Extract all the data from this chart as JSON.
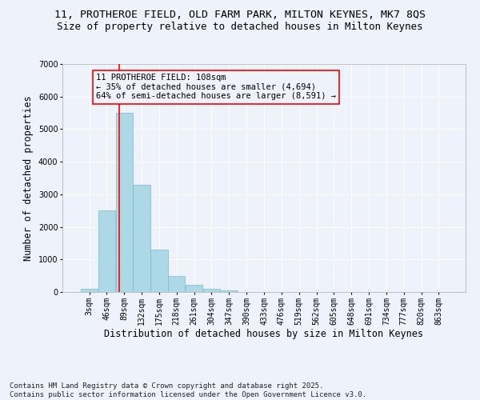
{
  "title_line1": "11, PROTHEROE FIELD, OLD FARM PARK, MILTON KEYNES, MK7 8QS",
  "title_line2": "Size of property relative to detached houses in Milton Keynes",
  "xlabel": "Distribution of detached houses by size in Milton Keynes",
  "ylabel": "Number of detached properties",
  "categories": [
    "3sqm",
    "46sqm",
    "89sqm",
    "132sqm",
    "175sqm",
    "218sqm",
    "261sqm",
    "304sqm",
    "347sqm",
    "390sqm",
    "433sqm",
    "476sqm",
    "519sqm",
    "562sqm",
    "605sqm",
    "648sqm",
    "691sqm",
    "734sqm",
    "777sqm",
    "820sqm",
    "863sqm"
  ],
  "values": [
    100,
    2500,
    5500,
    3300,
    1300,
    480,
    220,
    100,
    60,
    0,
    0,
    0,
    0,
    0,
    0,
    0,
    0,
    0,
    0,
    0,
    0
  ],
  "bar_color": "#add8e6",
  "bar_edge_color": "#7ab8d4",
  "bar_width": 0.97,
  "vline_color": "red",
  "vline_x": 1.7,
  "ylim": [
    0,
    7000
  ],
  "yticks": [
    0,
    1000,
    2000,
    3000,
    4000,
    5000,
    6000,
    7000
  ],
  "annotation_text": "11 PROTHEROE FIELD: 108sqm\n← 35% of detached houses are smaller (4,694)\n64% of semi-detached houses are larger (8,591) →",
  "box_color": "red",
  "background_color": "#eef2fb",
  "grid_color": "#ffffff",
  "footer_line1": "Contains HM Land Registry data © Crown copyright and database right 2025.",
  "footer_line2": "Contains public sector information licensed under the Open Government Licence v3.0.",
  "title_fontsize": 9.5,
  "subtitle_fontsize": 9,
  "axis_label_fontsize": 8.5,
  "tick_fontsize": 7,
  "annotation_fontsize": 7.5,
  "footer_fontsize": 6.5
}
